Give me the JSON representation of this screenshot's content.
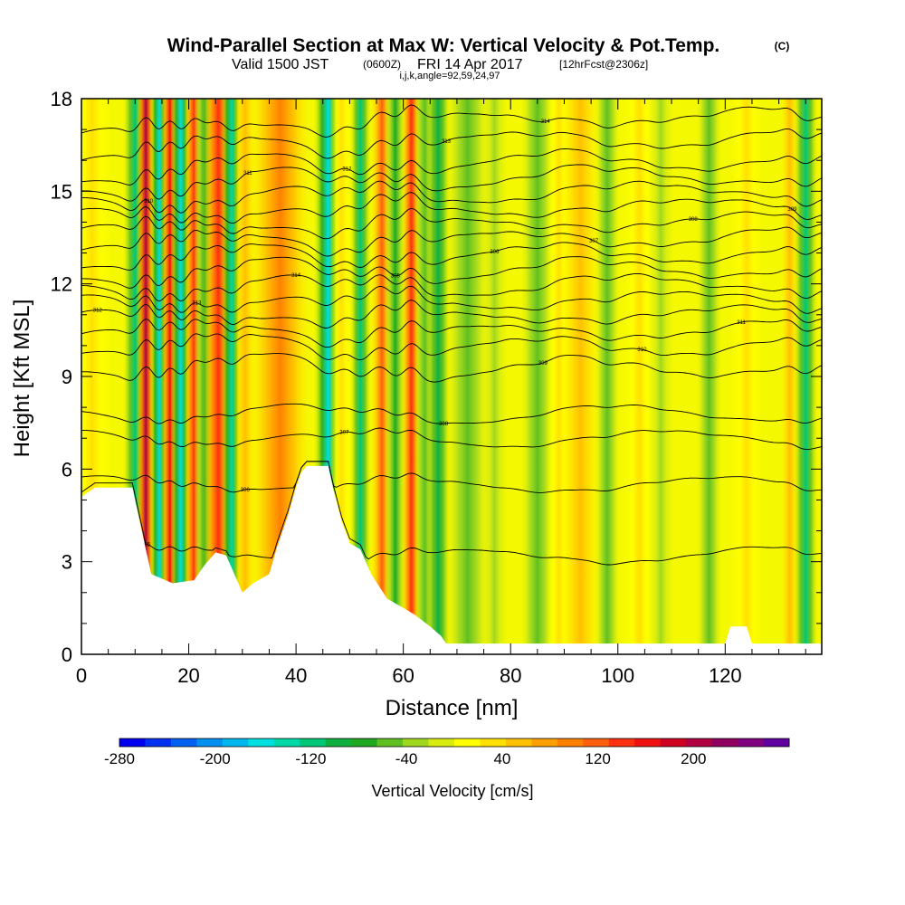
{
  "header": {
    "title": "Wind-Parallel Section at Max W: Vertical Velocity & Pot.Temp.",
    "copyright": "(C)",
    "valid_prefix": "Valid 1500 JST",
    "valid_utc": "(0600Z)",
    "valid_date": "FRI 14 Apr 2017",
    "forecast": "[12hrFcst@2306z]",
    "params": "i,j,k,angle=92,59,24,97"
  },
  "chart_data": {
    "type": "heatmap",
    "xlabel": "Distance [nm]",
    "ylabel": "Height [Kft MSL]",
    "xlim": [
      0,
      138
    ],
    "ylim": [
      0,
      18
    ],
    "x_ticks": [
      "0",
      "20",
      "40",
      "60",
      "80",
      "100",
      "120"
    ],
    "y_ticks": [
      "0",
      "3",
      "6",
      "9",
      "12",
      "15",
      "18"
    ],
    "colorbar": {
      "label": "Vertical Velocity [cm/s]",
      "range": [
        -280,
        280
      ],
      "tick_labels": [
        "-280",
        "-200",
        "-120",
        "-40",
        "40",
        "120",
        "200"
      ],
      "colors": [
        "#0000f0",
        "#0030f0",
        "#0060f0",
        "#0090f0",
        "#00b8f0",
        "#00e0e0",
        "#00d8a8",
        "#00c878",
        "#10b040",
        "#20a820",
        "#60c020",
        "#a0d820",
        "#d8ec10",
        "#ffff00",
        "#ffe000",
        "#ffc000",
        "#ffa000",
        "#ff8000",
        "#ff6010",
        "#ff3010",
        "#f01010",
        "#d00020",
        "#b00040",
        "#900060",
        "#800080",
        "#6000a0"
      ]
    },
    "vertical_velocity_bands": [
      {
        "x": 2,
        "w": 2.5,
        "v": 40
      },
      {
        "x": 10,
        "w": 1.5,
        "v": -120
      },
      {
        "x": 12,
        "w": 1.2,
        "v": 200
      },
      {
        "x": 14.5,
        "w": 1.2,
        "v": -160
      },
      {
        "x": 16.5,
        "w": 1.2,
        "v": 160
      },
      {
        "x": 18.5,
        "w": 1.3,
        "v": -160
      },
      {
        "x": 21,
        "w": 1.3,
        "v": 150
      },
      {
        "x": 23,
        "w": 1.4,
        "v": -80
      },
      {
        "x": 25.5,
        "w": 2,
        "v": 130
      },
      {
        "x": 28,
        "w": 1.3,
        "v": -140
      },
      {
        "x": 30.5,
        "w": 1.5,
        "v": 60
      },
      {
        "x": 37,
        "w": 4,
        "v": 100
      },
      {
        "x": 46,
        "w": 1.8,
        "v": -160
      },
      {
        "x": 48.5,
        "w": 1.5,
        "v": 40
      },
      {
        "x": 52,
        "w": 1.3,
        "v": -110
      },
      {
        "x": 56,
        "w": 1.5,
        "v": 110
      },
      {
        "x": 58.5,
        "w": 1.4,
        "v": -80
      },
      {
        "x": 61.5,
        "w": 1.3,
        "v": 140
      },
      {
        "x": 64,
        "w": 1.3,
        "v": -60
      },
      {
        "x": 66.5,
        "w": 1.5,
        "v": -90
      },
      {
        "x": 72,
        "w": 2.5,
        "v": -60
      },
      {
        "x": 77,
        "w": 1.5,
        "v": -40
      },
      {
        "x": 85,
        "w": 2,
        "v": -50
      },
      {
        "x": 89,
        "w": 1.5,
        "v": 40
      },
      {
        "x": 93,
        "w": 2.5,
        "v": 60
      },
      {
        "x": 98,
        "w": 1.5,
        "v": -60
      },
      {
        "x": 104,
        "w": 2,
        "v": 40
      },
      {
        "x": 108,
        "w": 1.5,
        "v": -40
      },
      {
        "x": 117,
        "w": 1.5,
        "v": -50
      },
      {
        "x": 124,
        "w": 2,
        "v": 40
      },
      {
        "x": 132,
        "w": 1.2,
        "v": 60
      },
      {
        "x": 135,
        "w": 1.5,
        "v": -120
      }
    ],
    "terrain_height_kft": [
      [
        0,
        5.1
      ],
      [
        2.5,
        5.4
      ],
      [
        9.5,
        5.4
      ],
      [
        10.5,
        4.6
      ],
      [
        12,
        3.4
      ],
      [
        13,
        2.6
      ],
      [
        17,
        2.3
      ],
      [
        21,
        2.4
      ],
      [
        23,
        2.9
      ],
      [
        25,
        3.3
      ],
      [
        27,
        3.2
      ],
      [
        28.5,
        2.6
      ],
      [
        30,
        2.0
      ],
      [
        32,
        2.3
      ],
      [
        35,
        2.6
      ],
      [
        36.5,
        3.5
      ],
      [
        38.5,
        4.5
      ],
      [
        40,
        5.4
      ],
      [
        41,
        5.9
      ],
      [
        42,
        6.1
      ],
      [
        44,
        6.1
      ],
      [
        46,
        6.1
      ],
      [
        47,
        5.3
      ],
      [
        48.5,
        4.3
      ],
      [
        50,
        3.6
      ],
      [
        52,
        3.4
      ],
      [
        54,
        2.6
      ],
      [
        57,
        1.8
      ],
      [
        60,
        1.5
      ],
      [
        62,
        1.3
      ],
      [
        65,
        0.9
      ],
      [
        67,
        0.6
      ],
      [
        68,
        0.35
      ],
      [
        75,
        0.35
      ],
      [
        100,
        0.35
      ],
      [
        120,
        0.35
      ],
      [
        121,
        0.9
      ],
      [
        124,
        0.9
      ],
      [
        125,
        0.35
      ],
      [
        138,
        0.35
      ]
    ],
    "theta_contour_levels_kft": [
      3.2,
      5.5,
      7.0,
      7.8,
      9.3,
      10.0,
      10.5,
      11.0,
      11.5,
      12.0,
      12.5,
      13.0,
      13.5,
      14.0,
      14.5,
      15.0,
      15.5,
      16.0,
      16.7,
      17.4
    ]
  },
  "contour_labels": [
    "305",
    "306",
    "307",
    "308",
    "309",
    "310",
    "311",
    "312",
    "313",
    "314"
  ]
}
